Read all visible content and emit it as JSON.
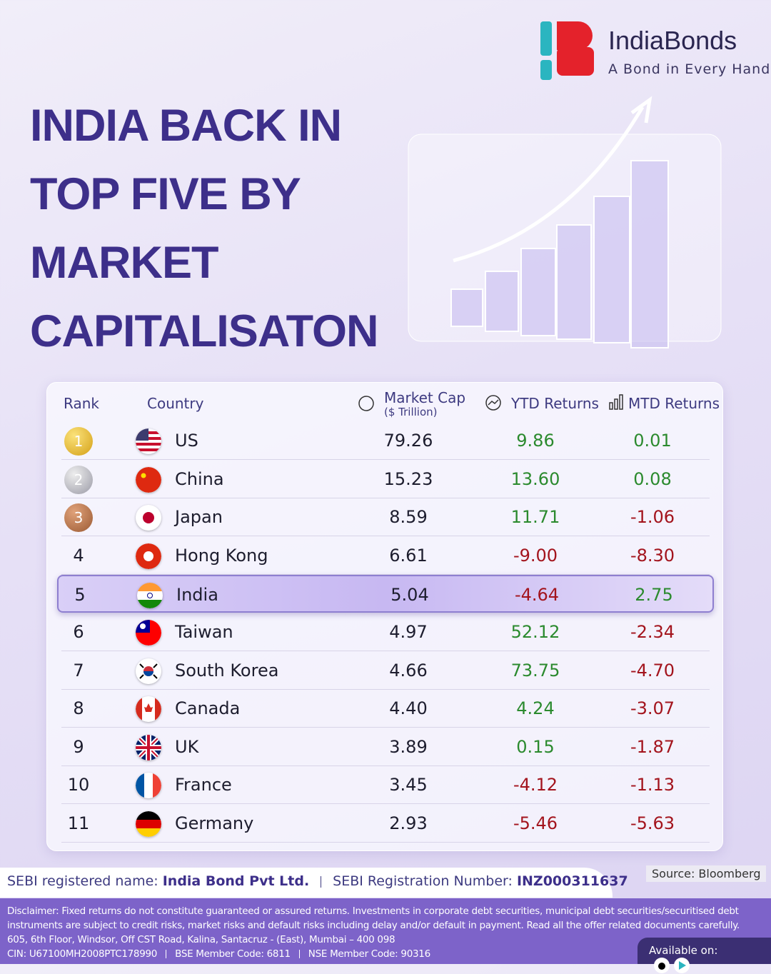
{
  "brand": {
    "name": "IndiaBonds",
    "tagline": "A Bond in Every Hand"
  },
  "header": {
    "title_lines": [
      "INDIA BACK IN",
      "TOP FIVE BY",
      "MARKET",
      "CAPITALISATON"
    ]
  },
  "table": {
    "columns": {
      "rank": "Rank",
      "country": "Country",
      "market_cap": "Market Cap",
      "market_cap_unit": "($ Trillion)",
      "ytd": "YTD Returns",
      "mtd": "MTD Returns"
    },
    "rows": [
      {
        "rank": "1",
        "country": "US",
        "market_cap": "79.26",
        "ytd": "9.86",
        "mtd": "0.01"
      },
      {
        "rank": "2",
        "country": "China",
        "market_cap": "15.23",
        "ytd": "13.60",
        "mtd": "0.08"
      },
      {
        "rank": "3",
        "country": "Japan",
        "market_cap": "8.59",
        "ytd": "11.71",
        "mtd": "-1.06"
      },
      {
        "rank": "4",
        "country": "Hong Kong",
        "market_cap": "6.61",
        "ytd": "-9.00",
        "mtd": "-8.30"
      },
      {
        "rank": "5",
        "country": "India",
        "market_cap": "5.04",
        "ytd": "-4.64",
        "mtd": "2.75"
      },
      {
        "rank": "6",
        "country": "Taiwan",
        "market_cap": "4.97",
        "ytd": "52.12",
        "mtd": "-2.34"
      },
      {
        "rank": "7",
        "country": "South Korea",
        "market_cap": "4.66",
        "ytd": "73.75",
        "mtd": "-4.70"
      },
      {
        "rank": "8",
        "country": "Canada",
        "market_cap": "4.40",
        "ytd": "4.24",
        "mtd": "-3.07"
      },
      {
        "rank": "9",
        "country": "UK",
        "market_cap": "3.89",
        "ytd": "0.15",
        "mtd": "-1.87"
      },
      {
        "rank": "10",
        "country": "France",
        "market_cap": "3.45",
        "ytd": "-4.12",
        "mtd": "-1.13"
      },
      {
        "rank": "11",
        "country": "Germany",
        "market_cap": "2.93",
        "ytd": "-5.46",
        "mtd": "-5.63"
      }
    ]
  },
  "footer": {
    "source": "Source: Bloomberg",
    "sebi_name_label": "SEBI registered name:",
    "sebi_name": "India Bond Pvt Ltd.",
    "sebi_reg_label": "SEBI Registration Number:",
    "sebi_reg": "INZ000311637",
    "disclaimer": "Disclaimer: Fixed returns do not constitute guaranteed or assured returns. Investments in corporate debt securities, municipal debt securities/securitised debt instruments are subject to credit risks, market risks and default risks including delay and/or default in payment. Read all the offer related documents carefully.",
    "address": "605, 6th Floor, Windsor, Off CST Road, Kalina, Santacruz - (East), Mumbai – 400 098",
    "codes": [
      "CIN: U67100MH2008PTC178990",
      "BSE Member Code: 6811",
      "NSE Member Code: 90316"
    ],
    "available": "Available on:"
  }
}
